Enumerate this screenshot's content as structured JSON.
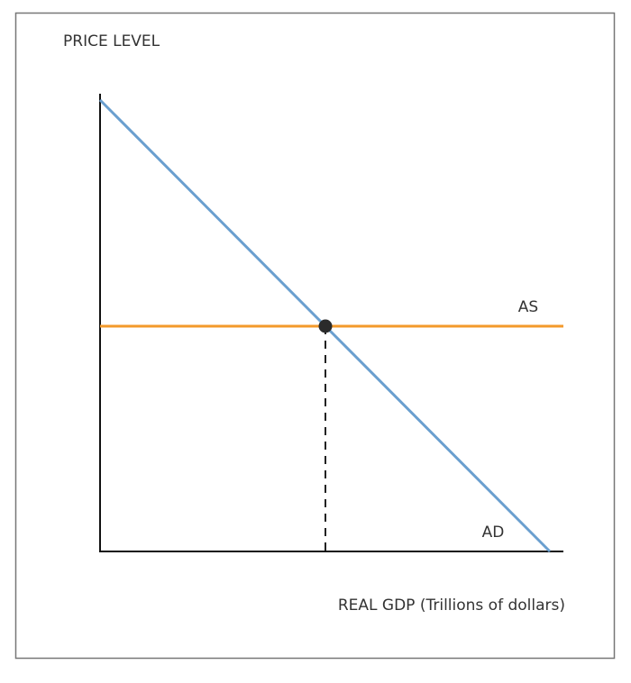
{
  "axes": {
    "y_label": "PRICE LEVEL",
    "x_label": "REAL GDP (Trillions of dollars)"
  },
  "curves": [
    {
      "label": "AS"
    },
    {
      "label": "AD"
    }
  ]
}
